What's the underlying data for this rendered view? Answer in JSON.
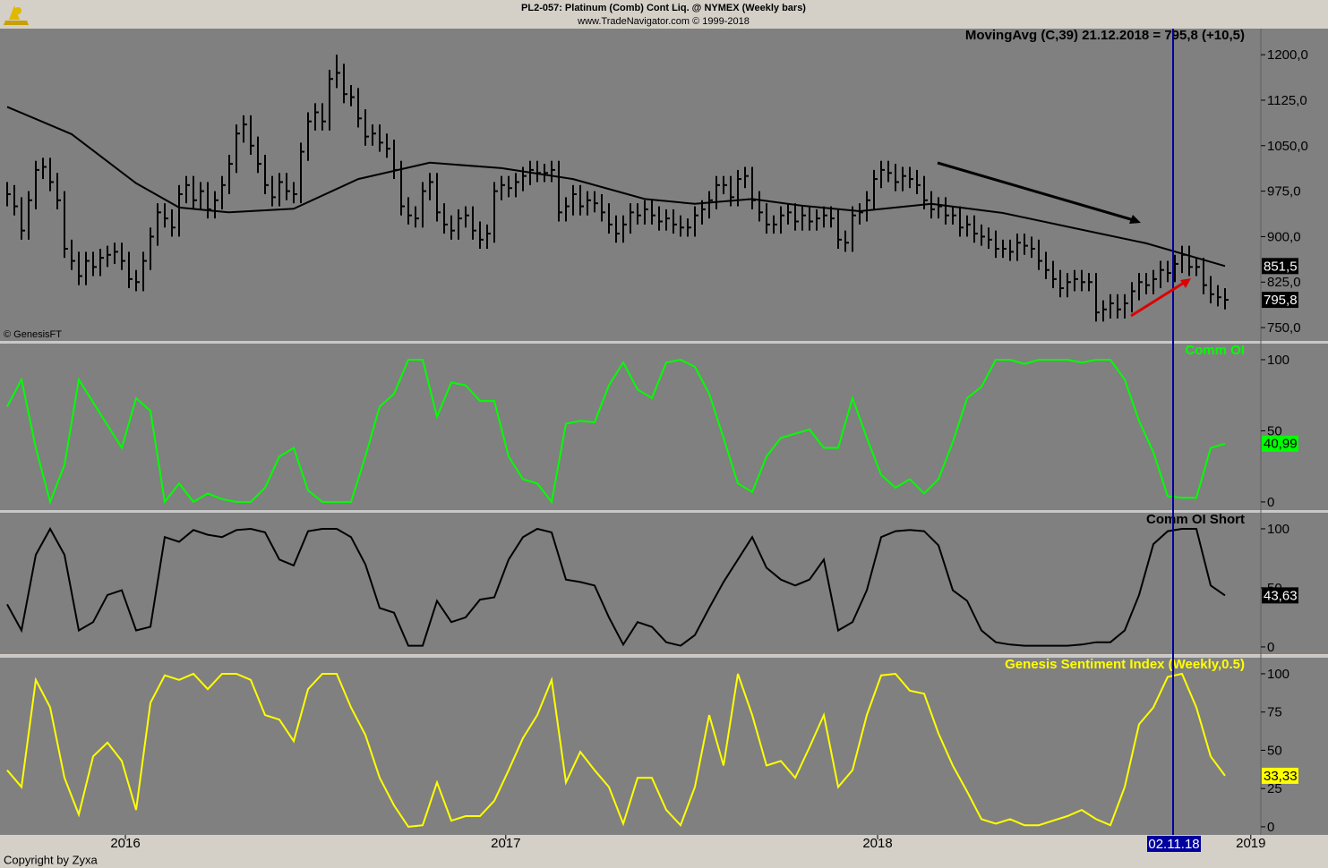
{
  "header": {
    "title": "PL2-057:  Platinum (Comb) Cont Liq. @ NYMEX  (Weekly bars)",
    "subtitle": "www.TradeNavigator.com © 1999-2018"
  },
  "footer": "Copyright by Zyxa",
  "x_axis": {
    "xlim": [
      -1,
      175
    ],
    "xticks": [
      {
        "value": 16.5,
        "label": "2016"
      },
      {
        "value": 69.6,
        "label": "2017"
      },
      {
        "value": 121.5,
        "label": "2018"
      },
      {
        "value": 173.6,
        "label": "2019"
      }
    ],
    "cursor": {
      "x": 162.75,
      "label": "02.11.18",
      "color": "#0000a0"
    }
  },
  "chart_data": [
    {
      "type": "hlc",
      "title": "MovingAvg (C,39)   21.12.2018 = 795,8 (+10,5)",
      "credit": "© GenesisFT",
      "ylim": [
        728,
        1243
      ],
      "yticks": [
        {
          "value": 750,
          "label": "750,0"
        },
        {
          "value": 825,
          "label": "825,0"
        },
        {
          "value": 900,
          "label": "900,0"
        },
        {
          "value": 975,
          "label": "975,0"
        },
        {
          "value": 1050,
          "label": "1050,0"
        },
        {
          "value": 1125,
          "label": "1125,0"
        },
        {
          "value": 1200,
          "label": "1200,0"
        }
      ],
      "color": "#000000",
      "x": [
        0,
        1,
        2,
        3,
        4,
        5,
        6,
        7,
        8,
        9,
        10,
        11,
        12,
        13,
        14,
        15,
        16,
        17,
        18,
        19,
        20,
        21,
        22,
        23,
        24,
        25,
        26,
        27,
        28,
        29,
        30,
        31,
        32,
        33,
        34,
        35,
        36,
        37,
        38,
        39,
        40,
        41,
        42,
        43,
        44,
        45,
        46,
        47,
        48,
        49,
        50,
        51,
        52,
        53,
        54,
        55,
        56,
        57,
        58,
        59,
        60,
        61,
        62,
        63,
        64,
        65,
        66,
        67,
        68,
        69,
        70,
        71,
        72,
        73,
        74,
        75,
        76,
        77,
        78,
        79,
        80,
        81,
        82,
        83,
        84,
        85,
        86,
        87,
        88,
        89,
        90,
        91,
        92,
        93,
        94,
        95,
        96,
        97,
        98,
        99,
        100,
        101,
        102,
        103,
        104,
        105,
        106,
        107,
        108,
        109,
        110,
        111,
        112,
        113,
        114,
        115,
        116,
        117,
        118,
        119,
        120,
        121,
        122,
        123,
        124,
        125,
        126,
        127,
        128,
        129,
        130,
        131,
        132,
        133,
        134,
        135,
        136,
        137,
        138,
        139,
        140,
        141,
        142,
        143,
        144,
        145,
        146,
        147,
        148,
        149,
        150,
        151,
        152,
        153,
        154,
        155,
        156,
        157,
        158,
        159,
        160,
        161,
        162,
        163,
        164,
        165,
        166,
        167,
        168,
        169,
        170
      ],
      "high": [
        990,
        985,
        965,
        975,
        1025,
        1030,
        1030,
        1005,
        975,
        895,
        875,
        875,
        875,
        880,
        885,
        890,
        890,
        875,
        845,
        875,
        915,
        955,
        955,
        945,
        985,
        1000,
        1000,
        990,
        990,
        975,
        1000,
        1035,
        1085,
        1100,
        1100,
        1065,
        1035,
        1000,
        1005,
        1005,
        990,
        1055,
        1105,
        1120,
        1120,
        1175,
        1200,
        1185,
        1150,
        1145,
        1110,
        1085,
        1085,
        1070,
        1060,
        1025,
        965,
        950,
        990,
        1005,
        1005,
        955,
        935,
        945,
        950,
        950,
        925,
        920,
        990,
        1000,
        1000,
        1005,
        1015,
        1025,
        1025,
        1020,
        1025,
        1025,
        965,
        985,
        985,
        975,
        975,
        970,
        955,
        935,
        935,
        955,
        955,
        960,
        960,
        950,
        945,
        945,
        935,
        930,
        950,
        960,
        975,
        1000,
        1000,
        1000,
        1010,
        1015,
        1015,
        975,
        955,
        935,
        950,
        955,
        955,
        950,
        950,
        945,
        950,
        950,
        945,
        910,
        950,
        955,
        975,
        1010,
        1025,
        1025,
        1020,
        1015,
        1015,
        1010,
        1000,
        975,
        965,
        965,
        950,
        950,
        935,
        935,
        920,
        915,
        910,
        895,
        895,
        905,
        905,
        900,
        895,
        875,
        860,
        845,
        840,
        845,
        845,
        840,
        840,
        795,
        805,
        805,
        805,
        825,
        840,
        840,
        845,
        860,
        860,
        870,
        885,
        885,
        865,
        865,
        835,
        820,
        815
      ],
      "low": [
        950,
        935,
        895,
        895,
        945,
        995,
        975,
        945,
        865,
        845,
        820,
        820,
        835,
        835,
        850,
        855,
        845,
        815,
        810,
        810,
        845,
        885,
        915,
        900,
        900,
        955,
        945,
        945,
        930,
        930,
        945,
        970,
        1005,
        1055,
        1035,
        1005,
        970,
        950,
        950,
        960,
        955,
        955,
        1025,
        1075,
        1075,
        1075,
        1145,
        1120,
        1115,
        1080,
        1050,
        1050,
        1040,
        1030,
        995,
        935,
        920,
        915,
        915,
        960,
        925,
        905,
        895,
        895,
        915,
        895,
        880,
        880,
        890,
        960,
        965,
        965,
        975,
        985,
        990,
        990,
        990,
        925,
        925,
        935,
        935,
        935,
        940,
        925,
        905,
        890,
        890,
        905,
        920,
        920,
        920,
        910,
        910,
        905,
        900,
        900,
        900,
        920,
        930,
        945,
        970,
        950,
        950,
        980,
        945,
        925,
        905,
        905,
        905,
        920,
        910,
        910,
        910,
        910,
        915,
        915,
        880,
        875,
        875,
        920,
        925,
        945,
        980,
        990,
        975,
        975,
        980,
        970,
        945,
        930,
        930,
        920,
        920,
        900,
        900,
        890,
        885,
        880,
        865,
        865,
        860,
        860,
        870,
        865,
        845,
        830,
        815,
        800,
        800,
        810,
        810,
        810,
        760,
        760,
        765,
        765,
        765,
        775,
        795,
        805,
        805,
        815,
        825,
        825,
        840,
        835,
        835,
        805,
        790,
        785,
        780
      ],
      "close": [
        970,
        950,
        910,
        960,
        1010,
        1015,
        990,
        960,
        880,
        860,
        835,
        860,
        850,
        865,
        870,
        875,
        860,
        830,
        825,
        860,
        900,
        940,
        930,
        915,
        970,
        985,
        960,
        975,
        945,
        960,
        985,
        1020,
        1070,
        1085,
        1050,
        1020,
        985,
        965,
        990,
        975,
        970,
        1040,
        1090,
        1105,
        1090,
        1160,
        1170,
        1135,
        1130,
        1095,
        1065,
        1070,
        1055,
        1045,
        1010,
        950,
        935,
        930,
        975,
        990,
        940,
        920,
        910,
        930,
        935,
        910,
        895,
        905,
        975,
        985,
        980,
        990,
        1000,
        1010,
        1005,
        1005,
        1010,
        940,
        950,
        970,
        950,
        960,
        955,
        940,
        920,
        905,
        920,
        940,
        935,
        945,
        935,
        925,
        930,
        920,
        915,
        915,
        935,
        945,
        960,
        985,
        985,
        965,
        995,
        1000,
        960,
        940,
        920,
        920,
        935,
        940,
        925,
        935,
        925,
        930,
        935,
        930,
        895,
        890,
        935,
        940,
        960,
        995,
        1010,
        1005,
        990,
        1000,
        995,
        985,
        960,
        945,
        950,
        935,
        935,
        915,
        920,
        905,
        900,
        895,
        880,
        880,
        875,
        890,
        885,
        880,
        860,
        845,
        830,
        815,
        825,
        830,
        825,
        825,
        775,
        780,
        790,
        780,
        790,
        810,
        825,
        820,
        830,
        845,
        840,
        855,
        870,
        850,
        850,
        820,
        805,
        800,
        795.8
      ],
      "last_label": "795,8",
      "moving_average": {
        "color": "#000000",
        "x": [
          0,
          9,
          18,
          24,
          31,
          40,
          49,
          59,
          69,
          79,
          89,
          96,
          104,
          111,
          119,
          129,
          139,
          149,
          159,
          170
        ],
        "values": [
          1114,
          1069,
          988,
          948,
          940,
          946,
          995,
          1022,
          1013,
          995,
          962,
          954,
          962,
          951,
          942,
          954,
          939,
          914,
          889,
          851.5
        ],
        "last_label": "851,5"
      }
    },
    {
      "type": "line",
      "title": "Comm OI",
      "color": "#00ff00",
      "label_text_color": "#000000",
      "ylim": [
        -5.7,
        111.3
      ],
      "yticks": [
        0,
        50,
        100
      ],
      "x": [
        0,
        2,
        4,
        6,
        8,
        10,
        12,
        14,
        16,
        18,
        20,
        22,
        24,
        26,
        28,
        30,
        32,
        34,
        36,
        38,
        40,
        42,
        44,
        46,
        48,
        50,
        52,
        54,
        56,
        58,
        60,
        62,
        64,
        66,
        68,
        70,
        72,
        74,
        76,
        78,
        80,
        82,
        84,
        86,
        88,
        90,
        92,
        94,
        96,
        98,
        100,
        102,
        104,
        106,
        108,
        110,
        112,
        114,
        116,
        118,
        120,
        122,
        124,
        126,
        128,
        130,
        132,
        134,
        136,
        138,
        140,
        142,
        144,
        146,
        148,
        150,
        152,
        154,
        156,
        158,
        160,
        162,
        164,
        166,
        168,
        170
      ],
      "values": [
        67,
        86,
        38,
        0,
        26,
        86,
        70,
        54,
        38,
        73,
        64,
        0,
        13,
        0,
        6,
        2,
        0,
        0,
        10,
        32,
        38,
        8,
        0,
        0,
        0,
        32,
        67,
        76,
        100,
        100,
        60,
        84,
        82,
        71,
        71,
        32,
        16,
        13,
        0,
        55,
        57,
        56,
        82,
        98,
        79,
        73,
        98,
        100,
        95,
        76,
        45,
        13,
        7,
        32,
        45,
        48,
        51,
        38,
        38,
        73,
        45,
        19,
        10,
        16,
        6,
        16,
        42,
        73,
        81,
        100,
        100,
        97,
        100,
        100,
        100,
        98,
        100,
        100,
        86,
        57,
        35,
        4,
        3,
        3,
        38,
        40.99
      ],
      "last_label": "40,99"
    },
    {
      "type": "line",
      "title": "Comm OI Short",
      "color": "#000000",
      "label_text_color": "#ffffff",
      "ylim": [
        -6.1,
        113.6
      ],
      "yticks": [
        0,
        50,
        100
      ],
      "x": [
        0,
        2,
        4,
        6,
        8,
        10,
        12,
        14,
        16,
        18,
        20,
        22,
        24,
        26,
        28,
        30,
        32,
        34,
        36,
        38,
        40,
        42,
        44,
        46,
        48,
        50,
        52,
        54,
        56,
        58,
        60,
        62,
        64,
        66,
        68,
        70,
        72,
        74,
        76,
        78,
        80,
        82,
        84,
        86,
        88,
        90,
        92,
        94,
        96,
        98,
        100,
        102,
        104,
        106,
        108,
        110,
        112,
        114,
        116,
        118,
        120,
        122,
        124,
        126,
        128,
        130,
        132,
        134,
        136,
        138,
        140,
        142,
        144,
        146,
        148,
        150,
        152,
        154,
        156,
        158,
        160,
        162,
        164,
        166,
        168,
        170
      ],
      "values": [
        36,
        14,
        78,
        100,
        78,
        14,
        21,
        44,
        48,
        14,
        17,
        93,
        89,
        99,
        95,
        93,
        99,
        100,
        97,
        74,
        69,
        98,
        100,
        100,
        93,
        70,
        33,
        29,
        1,
        1,
        39,
        21,
        25,
        40,
        42,
        74,
        93,
        100,
        97,
        57,
        55,
        52,
        25,
        2,
        21,
        17,
        4,
        1,
        10,
        33,
        55,
        74,
        93,
        67,
        57,
        52,
        57,
        74,
        14,
        21,
        48,
        93,
        98,
        99,
        98,
        86,
        48,
        39,
        14,
        4,
        2,
        1,
        1,
        1,
        1,
        2,
        4,
        4,
        14,
        44,
        87,
        98,
        100,
        100,
        52,
        43.63
      ],
      "last_label": "43,63"
    },
    {
      "type": "line",
      "title": "Genesis Sentiment Index (Weekly,0.5)",
      "color": "#ffff00",
      "label_text_color": "#000000",
      "ylim": [
        -5.3,
        110.5
      ],
      "yticks": [
        0,
        25,
        50,
        75,
        100
      ],
      "x": [
        0,
        2,
        4,
        6,
        8,
        10,
        12,
        14,
        16,
        18,
        20,
        22,
        24,
        26,
        28,
        30,
        32,
        34,
        36,
        38,
        40,
        42,
        44,
        46,
        48,
        50,
        52,
        54,
        56,
        58,
        60,
        62,
        64,
        66,
        68,
        70,
        72,
        74,
        76,
        78,
        80,
        82,
        84,
        86,
        88,
        90,
        92,
        94,
        96,
        98,
        100,
        102,
        104,
        106,
        108,
        110,
        112,
        114,
        116,
        118,
        120,
        122,
        124,
        126,
        128,
        130,
        132,
        134,
        136,
        138,
        140,
        142,
        144,
        146,
        148,
        150,
        152,
        154,
        156,
        158,
        160,
        162,
        164,
        166,
        168,
        170
      ],
      "values": [
        37,
        26,
        96,
        78,
        32,
        8,
        46,
        55,
        43,
        11,
        81,
        99,
        96,
        100,
        90,
        100,
        100,
        96,
        73,
        70,
        56,
        90,
        100,
        100,
        78,
        60,
        32,
        14,
        0,
        1,
        29,
        4,
        7,
        7,
        17,
        37,
        58,
        73,
        96,
        29,
        49,
        37,
        26,
        2,
        32,
        32,
        11,
        1,
        26,
        73,
        40,
        100,
        73,
        40,
        43,
        32,
        52,
        73,
        26,
        37,
        73,
        99,
        100,
        89,
        87,
        61,
        40,
        23,
        5,
        2,
        5,
        1,
        1,
        4,
        7,
        11,
        5,
        1,
        26,
        67,
        78,
        98,
        100,
        78,
        46,
        33.33
      ],
      "last_label": "33,33"
    }
  ]
}
